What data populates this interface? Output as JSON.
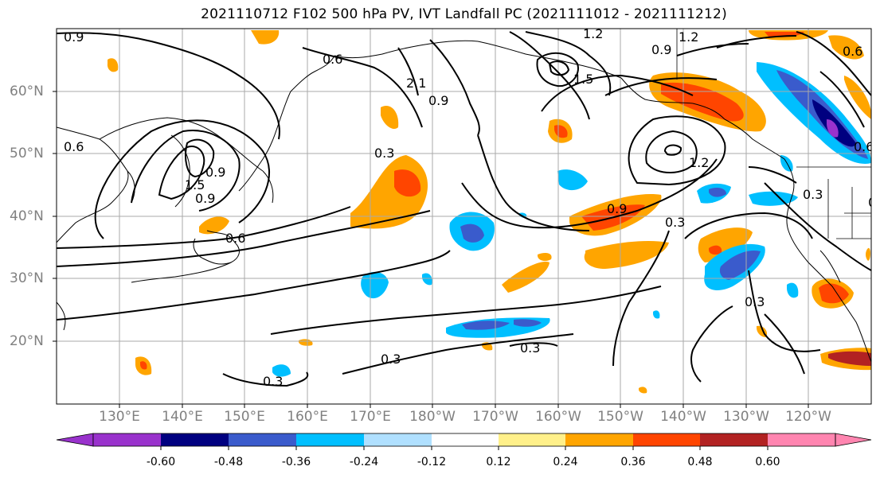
{
  "title": "2021110712 F102 500 hPa PV, IVT Landfall PC (2021111012 - 2021111212)",
  "map": {
    "lon_labels": [
      "130°E",
      "140°E",
      "150°E",
      "160°E",
      "170°E",
      "180°W",
      "170°W",
      "160°W",
      "150°W",
      "140°W",
      "130°W",
      "120°W"
    ],
    "lat_labels": [
      "60°N",
      "50°N",
      "40°N",
      "30°N",
      "20°N"
    ],
    "contour_labels": [
      "0.9",
      "0.6",
      "1.2",
      "0.9",
      "1.2",
      "0.6",
      "2.1",
      "1.5",
      "0.6",
      "0.9",
      "0.6",
      "0.3",
      "1.5",
      "0.9",
      "0.6",
      "0.3",
      "0.9",
      "1.2",
      "0.3",
      "0.3",
      "0.9",
      "0.3",
      "0.3",
      "0.3",
      "0.3"
    ],
    "colors": {
      "land": "#000000",
      "grid": "#aaaaaa",
      "pos": [
        "#fff08a",
        "#ffa500",
        "#ff4500",
        "#b22222",
        "#ff85b0"
      ],
      "neg": [
        "#b0e0ff",
        "#00bfff",
        "#3a5bcc",
        "#000080",
        "#9932cc"
      ]
    }
  },
  "colorbar": {
    "ticks": [
      "-0.60",
      "-0.48",
      "-0.36",
      "-0.24",
      "-0.12",
      "0.12",
      "0.24",
      "0.36",
      "0.48",
      "0.60"
    ],
    "colors": [
      "#9932cc",
      "#000080",
      "#3a5bcc",
      "#00bfff",
      "#b0e0ff",
      "#ffffff",
      "#fff08a",
      "#ffa500",
      "#ff4500",
      "#b22222",
      "#ff85b0"
    ]
  }
}
